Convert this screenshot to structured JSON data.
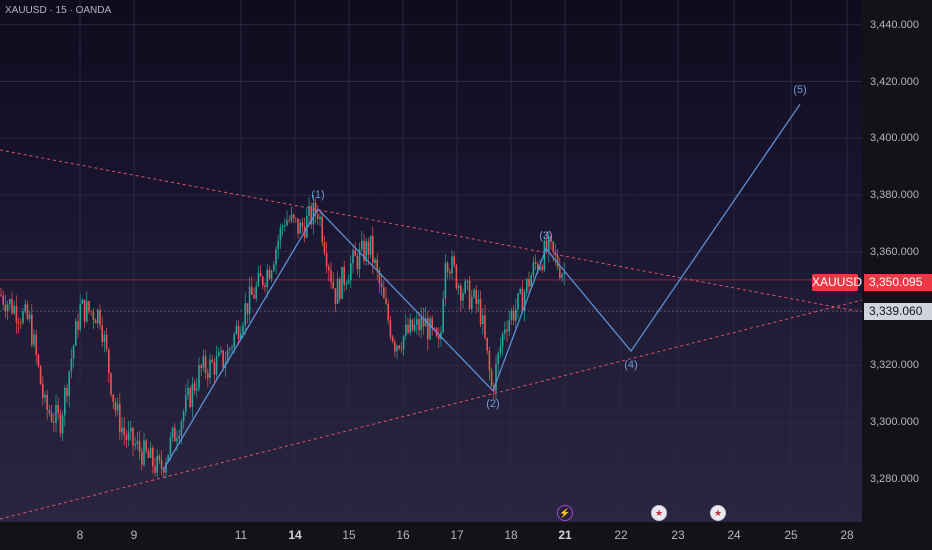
{
  "header": {
    "symbol_title": "XAUUSD · 15 · OANDA"
  },
  "price_axis": {
    "labels": [
      "3,440.000",
      "3,420.000",
      "3,400.000",
      "3,380.000",
      "3,360.000",
      "3,320.000",
      "3,300.000",
      "3,280.000"
    ],
    "values": [
      3440,
      3420,
      3400,
      3380,
      3360,
      3320,
      3300,
      3280
    ]
  },
  "time_axis": {
    "labels": [
      "8",
      "9",
      "11",
      "14",
      "15",
      "16",
      "17",
      "18",
      "21",
      "22",
      "23",
      "24",
      "25",
      "28"
    ],
    "bold": [
      "14",
      "21"
    ]
  },
  "symbol_tag": "XAUUSD",
  "current_price": {
    "label": "3,350.095",
    "value": 3350.095
  },
  "level_price": {
    "label": "3,339.060",
    "value": 3339.06
  },
  "waves": [
    {
      "label": "(1)",
      "price": 3375
    },
    {
      "label": "(2)",
      "price": 3311
    },
    {
      "label": "(3)",
      "price": 3361
    },
    {
      "label": "(4)",
      "price": 3325
    },
    {
      "label": "(5)",
      "price": 3412
    }
  ],
  "wave_start_price": 3283,
  "colors": {
    "bull": "#26a69a",
    "bear": "#ef5350",
    "wave_line": "#5b8fd6",
    "trendline": "#e0506a",
    "accent": "#f23645"
  },
  "events": [
    {
      "icon": "lightning-icon",
      "day": "21"
    },
    {
      "icon": "us-flag-icon",
      "day": "23"
    },
    {
      "icon": "us-flag-icon",
      "day": "24"
    }
  ]
}
